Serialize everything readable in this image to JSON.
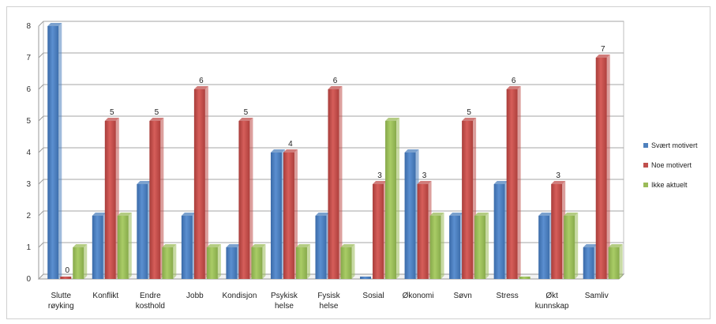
{
  "chart_data": {
    "type": "bar",
    "categories": [
      [
        "Slutte",
        "røyking"
      ],
      [
        "Konflikt"
      ],
      [
        "Endre",
        "kosthold"
      ],
      [
        "Jobb"
      ],
      [
        "Kondisjon"
      ],
      [
        "Psykisk",
        "helse"
      ],
      [
        "Fysisk",
        "helse"
      ],
      [
        "Sosial"
      ],
      [
        "Økonomi"
      ],
      [
        "Søvn"
      ],
      [
        "Stress"
      ],
      [
        "Økt",
        "kunnskap"
      ],
      [
        "Samliv"
      ]
    ],
    "series": [
      {
        "name": "Svært motivert",
        "values": [
          8,
          2,
          3,
          2,
          1,
          4,
          2,
          0,
          4,
          2,
          3,
          2,
          1
        ]
      },
      {
        "name": "Noe motivert",
        "values": [
          0,
          5,
          5,
          6,
          5,
          4,
          6,
          3,
          3,
          5,
          6,
          3,
          7
        ]
      },
      {
        "name": "Ikke aktuelt",
        "values": [
          1,
          2,
          1,
          1,
          1,
          1,
          1,
          5,
          2,
          2,
          0,
          2,
          1
        ]
      }
    ],
    "data_labels": [
      {
        "category": 0,
        "series": 1,
        "text": "0"
      },
      {
        "category": 1,
        "series": 1,
        "text": "5"
      },
      {
        "category": 2,
        "series": 1,
        "text": "5"
      },
      {
        "category": 3,
        "series": 1,
        "text": "6"
      },
      {
        "category": 4,
        "series": 1,
        "text": "5"
      },
      {
        "category": 5,
        "series": 1,
        "text": "4"
      },
      {
        "category": 6,
        "series": 1,
        "text": "6"
      },
      {
        "category": 7,
        "series": 1,
        "text": "3"
      },
      {
        "category": 8,
        "series": 1,
        "text": "3"
      },
      {
        "category": 9,
        "series": 1,
        "text": "5"
      },
      {
        "category": 10,
        "series": 1,
        "text": "6"
      },
      {
        "category": 11,
        "series": 1,
        "text": "3"
      },
      {
        "category": 12,
        "series": 1,
        "text": "7"
      }
    ],
    "yticks": [
      0,
      1,
      2,
      3,
      4,
      5,
      6,
      7,
      8
    ],
    "ylim": [
      0,
      8
    ],
    "grid": true,
    "legend_position": "right",
    "colors": {
      "Svært motivert": "#4f81bd",
      "Noe motivert": "#c0504d",
      "Ikke aktuelt": "#9bbb59"
    }
  }
}
